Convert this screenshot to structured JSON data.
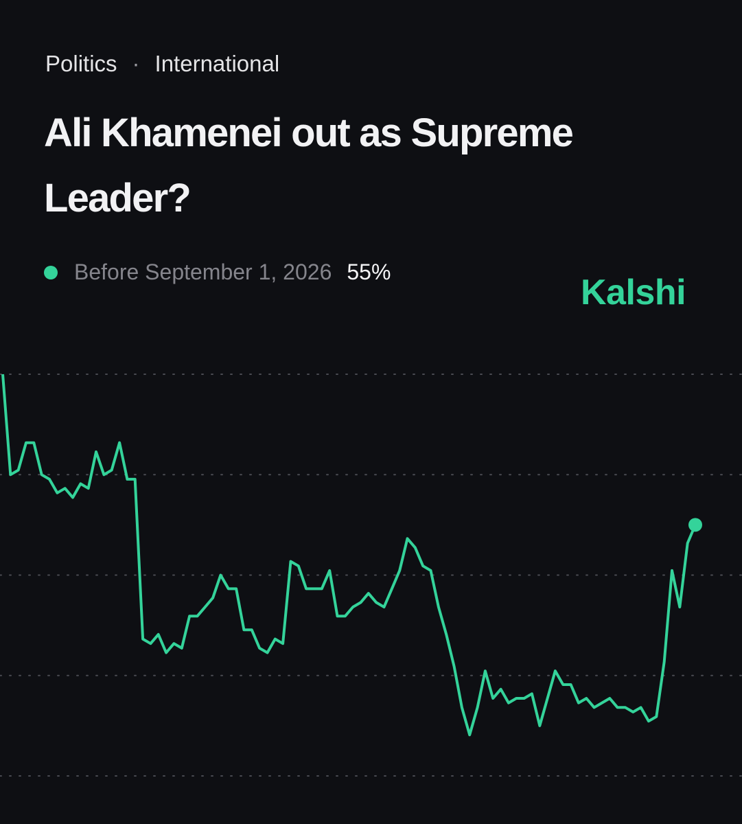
{
  "header": {
    "tags": [
      "Politics",
      "International"
    ],
    "title": "Ali Khamenei out as Supreme Leader?",
    "brand": "Kalshi"
  },
  "chart_data": {
    "type": "line",
    "series": [
      {
        "name": "Before September 1, 2026",
        "color": "#34d39a",
        "values": [
          88,
          66,
          67,
          73,
          73,
          66,
          65,
          62,
          63,
          61,
          64,
          63,
          71,
          66,
          67,
          73,
          65,
          65,
          30,
          29,
          31,
          27,
          29,
          28,
          35,
          35,
          37,
          39,
          44,
          41,
          41,
          32,
          32,
          28,
          27,
          30,
          29,
          47,
          46,
          41,
          41,
          41,
          45,
          35,
          35,
          37,
          38,
          40,
          38,
          37,
          41,
          45,
          52,
          50,
          46,
          45,
          37,
          31,
          24,
          15,
          9,
          15,
          23,
          17,
          19,
          16,
          17,
          17,
          18,
          11,
          17,
          23,
          20,
          20,
          16,
          17,
          15,
          16,
          17,
          15,
          15,
          14,
          15,
          12,
          13,
          25,
          45,
          37,
          51,
          55
        ],
        "value_labels": [
          null,
          null,
          null,
          null,
          null,
          null,
          null,
          null,
          null,
          null,
          null,
          null,
          null,
          null,
          null,
          null,
          null,
          null,
          null,
          null,
          null,
          null,
          null,
          null,
          null,
          null,
          null,
          null,
          null,
          null,
          null,
          null,
          null,
          null,
          null,
          null,
          null,
          null,
          null,
          null,
          null,
          null,
          null,
          null,
          null,
          null,
          null,
          null,
          null,
          null,
          null,
          null,
          null,
          null,
          null,
          null,
          null,
          null,
          null,
          null,
          null,
          null,
          null,
          null,
          null,
          null,
          null,
          null,
          null,
          null,
          null,
          null,
          null,
          null,
          null,
          null,
          null,
          null,
          null,
          null,
          null,
          null,
          null,
          null,
          null,
          null,
          null,
          null,
          null,
          "55%"
        ]
      }
    ],
    "ylim": [
      0,
      88
    ],
    "yticks": [
      0,
      22,
      44,
      66,
      88
    ],
    "grid": true
  }
}
